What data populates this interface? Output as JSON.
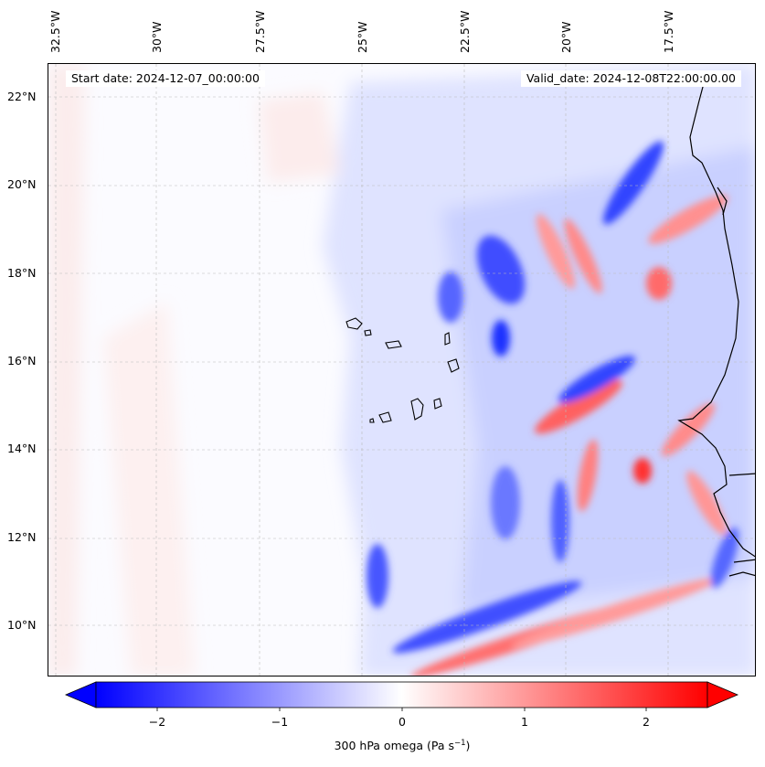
{
  "header": {
    "start_date": "Start date: 2024-12-07_00:00:00",
    "valid_date": "Valid_date: 2024-12-08T22:00:00.00"
  },
  "map": {
    "longitude_labels": [
      "32.5°W",
      "30°W",
      "27.5°W",
      "25°W",
      "22.5°W",
      "20°W",
      "17.5°W"
    ],
    "latitude_labels": [
      "22°N",
      "20°N",
      "18°N",
      "16°N",
      "14°N",
      "12°N",
      "10°N"
    ],
    "extent": {
      "lon_min": -32.7,
      "lon_max": -15.5,
      "lat_min": 8.8,
      "lat_max": 22.8
    },
    "field_colors": {
      "negative": "#0000ff",
      "zero": "#ffffff",
      "positive": "#ff0000"
    }
  },
  "colorbar": {
    "ticks": [
      "−2",
      "−1",
      "0",
      "1",
      "2"
    ],
    "label_main": "300 hPa omega (Pa s",
    "label_exp": "−1",
    "label_end": ")",
    "range": [
      -2.5,
      2.5
    ]
  }
}
